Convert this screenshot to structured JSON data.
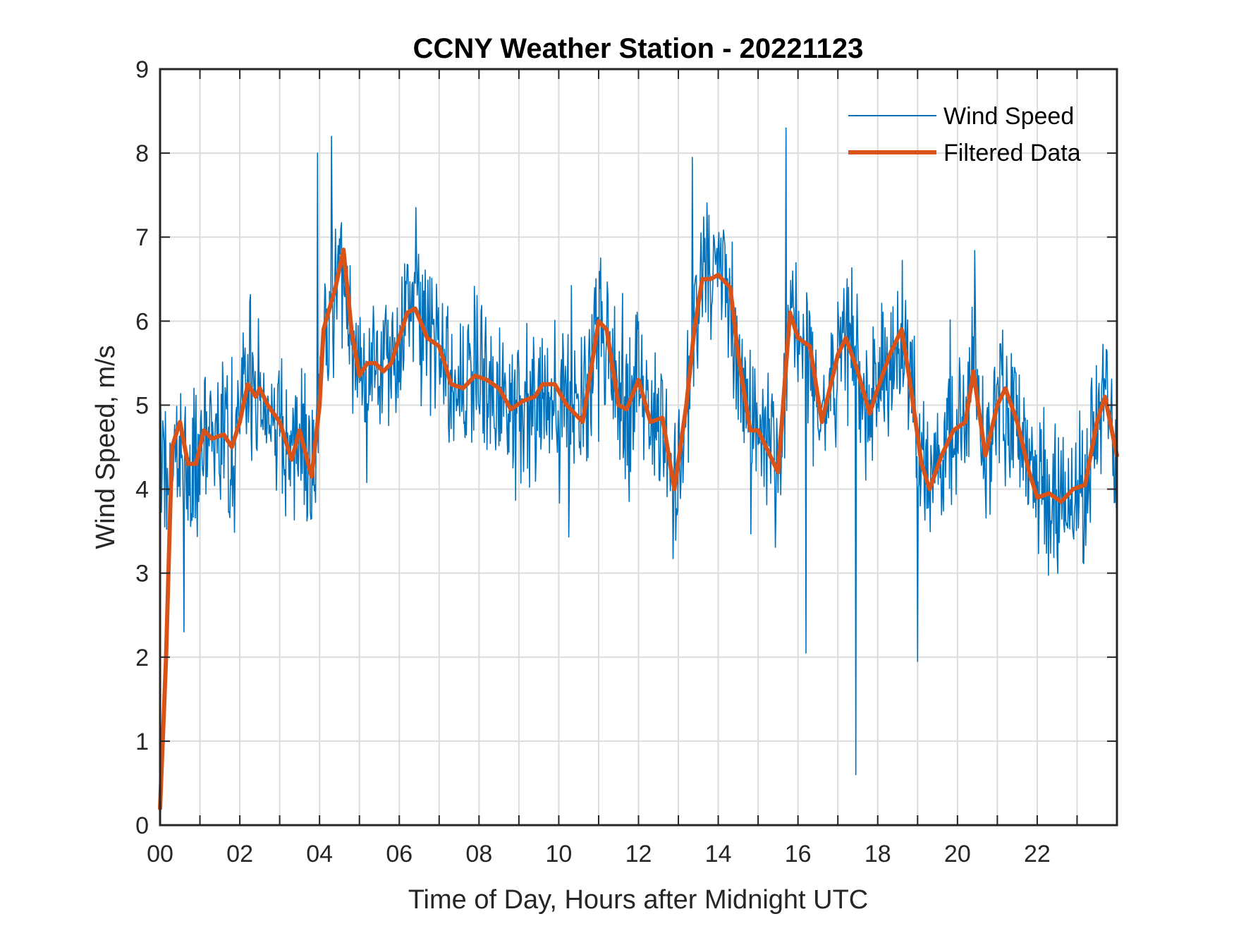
{
  "chart_data": {
    "type": "line",
    "title": "CCNY Weather Station - 20221123",
    "xlabel": "Time of Day, Hours after Midnight UTC",
    "ylabel": "Wind Speed, m/s",
    "xlim": [
      0,
      24
    ],
    "ylim": [
      0,
      9
    ],
    "grid": true,
    "legend_position": "top-right",
    "x_ticks": [
      0,
      2,
      4,
      6,
      8,
      10,
      12,
      14,
      16,
      18,
      20,
      22
    ],
    "x_tick_labels": [
      "00",
      "02",
      "04",
      "06",
      "08",
      "10",
      "12",
      "14",
      "16",
      "18",
      "20",
      "22"
    ],
    "x_minor_ticks": [
      1,
      3,
      5,
      7,
      9,
      11,
      13,
      15,
      17,
      19,
      21,
      23
    ],
    "y_ticks": [
      0,
      1,
      2,
      3,
      4,
      5,
      6,
      7,
      8,
      9
    ],
    "y_tick_labels": [
      "0",
      "1",
      "2",
      "3",
      "4",
      "5",
      "6",
      "7",
      "8",
      "9"
    ],
    "series": [
      {
        "name": "Wind Speed",
        "color": "#0072BD",
        "style": "thin-noisy",
        "noise_amplitude": 0.75,
        "notable_extremes": [
          {
            "x": 3.95,
            "y": 8.0
          },
          {
            "x": 4.3,
            "y": 8.2
          },
          {
            "x": 13.35,
            "y": 7.95
          },
          {
            "x": 15.7,
            "y": 8.3
          },
          {
            "x": 17.45,
            "y": 0.6
          },
          {
            "x": 16.2,
            "y": 2.05
          },
          {
            "x": 19.0,
            "y": 1.95
          },
          {
            "x": 0.6,
            "y": 2.3
          }
        ],
        "note": "raw samples fluctuate around the filtered series"
      },
      {
        "name": "Filtered Data",
        "color": "#D95319",
        "style": "thick",
        "x": [
          0.0,
          0.15,
          0.3,
          0.5,
          0.7,
          0.9,
          1.1,
          1.3,
          1.6,
          1.8,
          2.0,
          2.2,
          2.4,
          2.5,
          2.7,
          3.0,
          3.3,
          3.5,
          3.8,
          4.0,
          4.1,
          4.4,
          4.6,
          4.8,
          5.0,
          5.2,
          5.4,
          5.6,
          5.8,
          6.0,
          6.2,
          6.4,
          6.7,
          7.0,
          7.3,
          7.6,
          7.9,
          8.2,
          8.5,
          8.8,
          9.1,
          9.4,
          9.6,
          9.9,
          10.2,
          10.6,
          10.8,
          11.0,
          11.2,
          11.5,
          11.7,
          12.0,
          12.3,
          12.6,
          12.9,
          13.2,
          13.4,
          13.6,
          13.8,
          14.0,
          14.3,
          14.5,
          14.8,
          15.0,
          15.3,
          15.5,
          15.8,
          16.0,
          16.3,
          16.6,
          17.0,
          17.2,
          17.5,
          17.8,
          18.0,
          18.3,
          18.6,
          18.8,
          19.1,
          19.3,
          19.6,
          19.9,
          20.2,
          20.4,
          20.7,
          21.0,
          21.2,
          21.5,
          21.8,
          22.0,
          22.3,
          22.6,
          22.9,
          23.2,
          23.5,
          23.7,
          24.0
        ],
        "values": [
          0.2,
          2.0,
          4.5,
          4.8,
          4.3,
          4.3,
          4.7,
          4.6,
          4.65,
          4.5,
          4.8,
          5.25,
          5.1,
          5.2,
          5.0,
          4.8,
          4.35,
          4.7,
          4.15,
          5.0,
          5.9,
          6.4,
          6.85,
          5.9,
          5.35,
          5.5,
          5.5,
          5.4,
          5.5,
          5.8,
          6.1,
          6.15,
          5.8,
          5.7,
          5.25,
          5.2,
          5.35,
          5.3,
          5.2,
          4.95,
          5.05,
          5.1,
          5.25,
          5.25,
          5.0,
          4.8,
          5.4,
          6.0,
          5.9,
          5.0,
          4.95,
          5.3,
          4.8,
          4.85,
          4.0,
          5.0,
          5.9,
          6.5,
          6.5,
          6.55,
          6.4,
          5.6,
          4.7,
          4.7,
          4.4,
          4.2,
          6.1,
          5.8,
          5.7,
          4.8,
          5.6,
          5.8,
          5.4,
          4.9,
          5.2,
          5.6,
          5.9,
          5.3,
          4.3,
          4.0,
          4.4,
          4.7,
          4.8,
          5.4,
          4.4,
          5.0,
          5.2,
          4.8,
          4.2,
          3.9,
          3.95,
          3.85,
          4.0,
          4.05,
          4.8,
          5.1,
          4.4
        ]
      }
    ]
  }
}
